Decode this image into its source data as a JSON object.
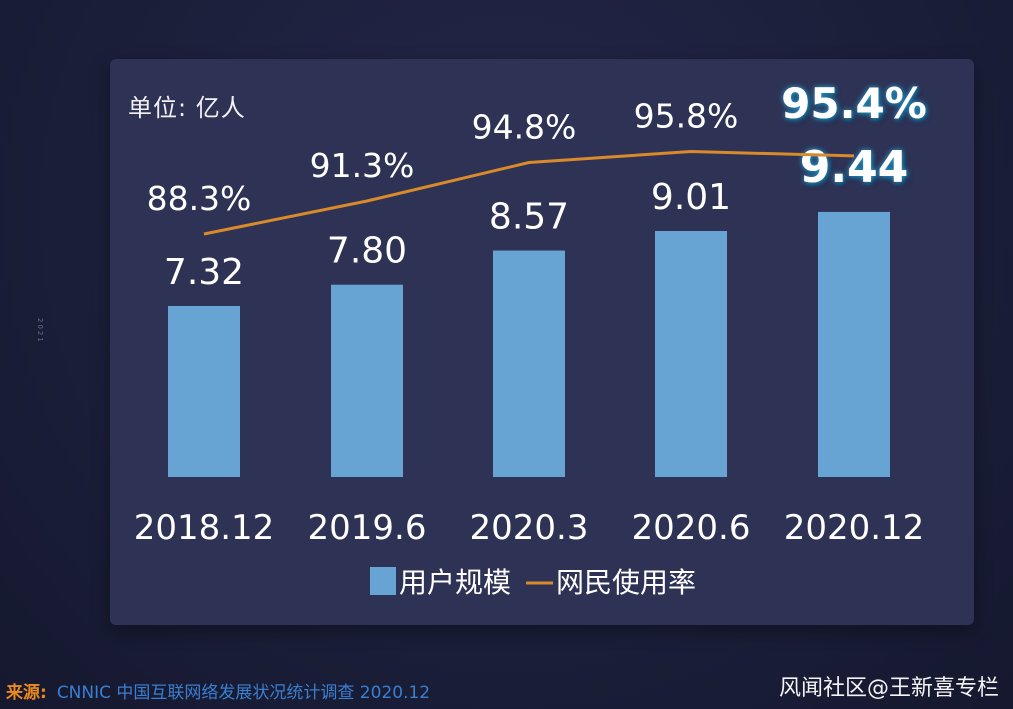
{
  "unit_label": "单位:  亿人",
  "side_text": "2021",
  "footer": {
    "source_key": "来源:",
    "source_text": "CNNIC 中国互联网络发展状况统计调查 2020.12",
    "brand": "风闻社区@王新喜专栏"
  },
  "colors": {
    "bar": "#67a3d3",
    "line": "#d98a2b",
    "text": "#ffffff",
    "highlight_glow": "#2c9fd6"
  },
  "chart_data": {
    "type": "bar",
    "title": "",
    "categories": [
      "2018.12",
      "2019.6",
      "2020.3",
      "2020.6",
      "2020.12"
    ],
    "series": [
      {
        "name": "用户规模",
        "type": "bar",
        "values": [
          7.32,
          7.8,
          8.57,
          9.01,
          9.44
        ],
        "labels": [
          "7.32",
          "7.80",
          "8.57",
          "9.01",
          "9.44"
        ]
      },
      {
        "name": "网民使用率",
        "type": "line",
        "values": [
          88.3,
          91.3,
          94.8,
          95.8,
          95.4
        ],
        "labels": [
          "88.3%",
          "91.3%",
          "94.8%",
          "95.8%",
          "95.4%"
        ]
      }
    ],
    "highlight_index": 4,
    "legend": [
      "用户规模",
      "网民使用率"
    ],
    "legend_position": "bottom",
    "grid": false
  }
}
